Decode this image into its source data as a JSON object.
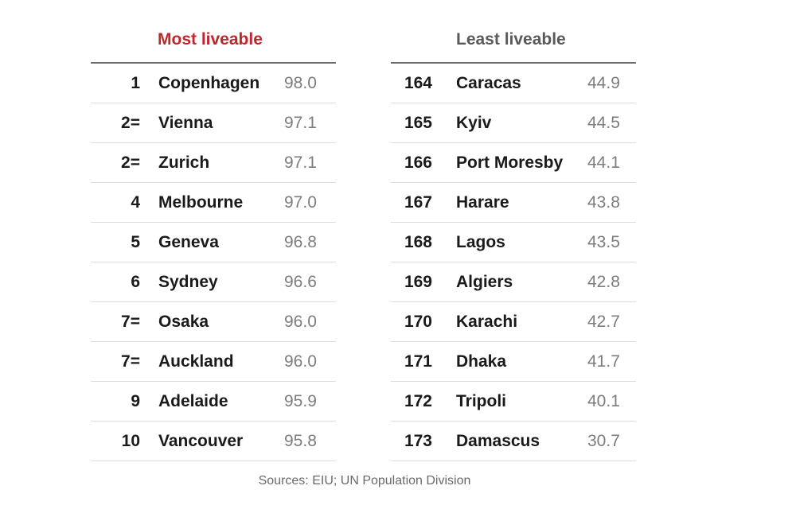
{
  "chart_data": {
    "type": "table",
    "tables": [
      {
        "title": "Most liveable",
        "title_color": "#c0272d",
        "rows": [
          {
            "rank": "1",
            "city": "Copenhagen",
            "score": "98.0"
          },
          {
            "rank": "2=",
            "city": "Vienna",
            "score": "97.1"
          },
          {
            "rank": "2=",
            "city": "Zurich",
            "score": "97.1"
          },
          {
            "rank": "4",
            "city": "Melbourne",
            "score": "97.0"
          },
          {
            "rank": "5",
            "city": "Geneva",
            "score": "96.8"
          },
          {
            "rank": "6",
            "city": "Sydney",
            "score": "96.6"
          },
          {
            "rank": "7=",
            "city": "Osaka",
            "score": "96.0"
          },
          {
            "rank": "7=",
            "city": "Auckland",
            "score": "96.0"
          },
          {
            "rank": "9",
            "city": "Adelaide",
            "score": "95.9"
          },
          {
            "rank": "10",
            "city": "Vancouver",
            "score": "95.8"
          }
        ]
      },
      {
        "title": "Least liveable",
        "title_color": "#5a5a5a",
        "rows": [
          {
            "rank": "164",
            "city": "Caracas",
            "score": "44.9"
          },
          {
            "rank": "165",
            "city": "Kyiv",
            "score": "44.5"
          },
          {
            "rank": "166",
            "city": "Port Moresby",
            "score": "44.1"
          },
          {
            "rank": "167",
            "city": "Harare",
            "score": "43.8"
          },
          {
            "rank": "168",
            "city": "Lagos",
            "score": "43.5"
          },
          {
            "rank": "169",
            "city": "Algiers",
            "score": "42.8"
          },
          {
            "rank": "170",
            "city": "Karachi",
            "score": "42.7"
          },
          {
            "rank": "171",
            "city": "Dhaka",
            "score": "41.7"
          },
          {
            "rank": "172",
            "city": "Tripoli",
            "score": "40.1"
          },
          {
            "rank": "173",
            "city": "Damascus",
            "score": "30.7"
          }
        ]
      }
    ],
    "source": "Sources: EIU; UN Population Division"
  }
}
